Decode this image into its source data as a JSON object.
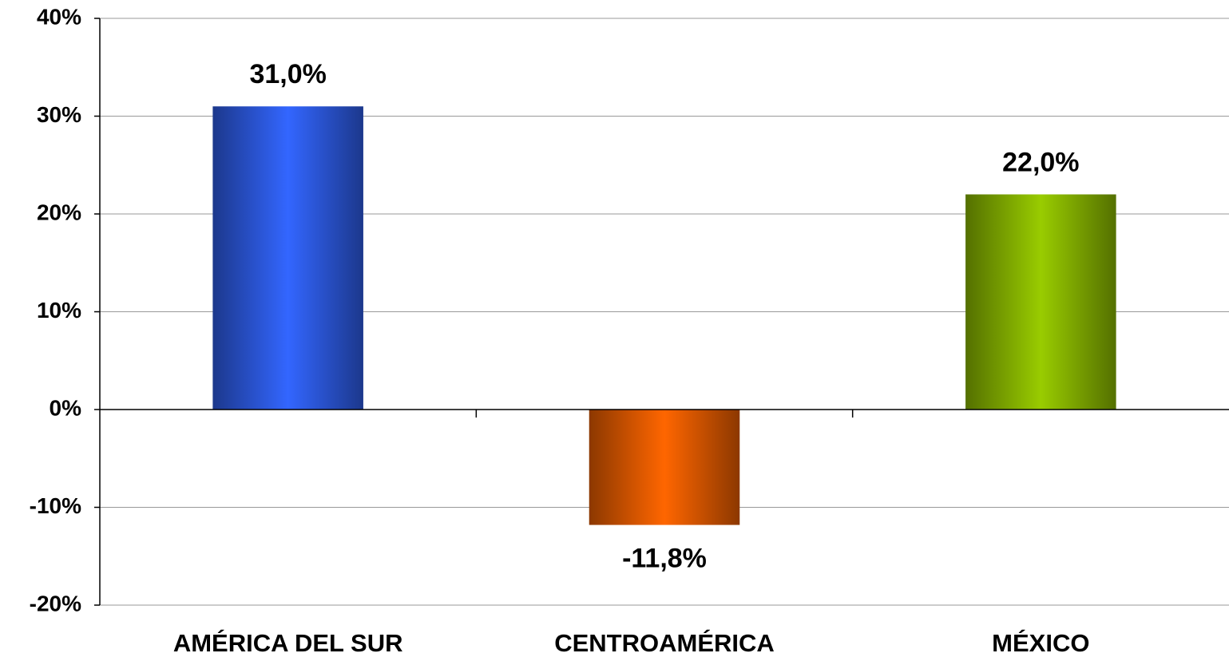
{
  "chart_data": {
    "type": "bar",
    "categories": [
      "AMÉRICA DEL SUR",
      "CENTROAMÉRICA",
      "MÉXICO"
    ],
    "values": [
      31.0,
      -11.8,
      22.0
    ],
    "value_labels": [
      "31,0%",
      "-11,8%",
      "22,0%"
    ],
    "colors": [
      "#3366ff",
      "#ff6600",
      "#99cc00"
    ],
    "ylim": [
      -20,
      40
    ],
    "yticks": [
      {
        "value": -20,
        "label": "-20%"
      },
      {
        "value": -10,
        "label": "-10%"
      },
      {
        "value": 0,
        "label": "0%"
      },
      {
        "value": 10,
        "label": "10%"
      },
      {
        "value": 20,
        "label": "20%"
      },
      {
        "value": 30,
        "label": "30%"
      },
      {
        "value": 40,
        "label": "40%"
      }
    ],
    "grid": true
  }
}
